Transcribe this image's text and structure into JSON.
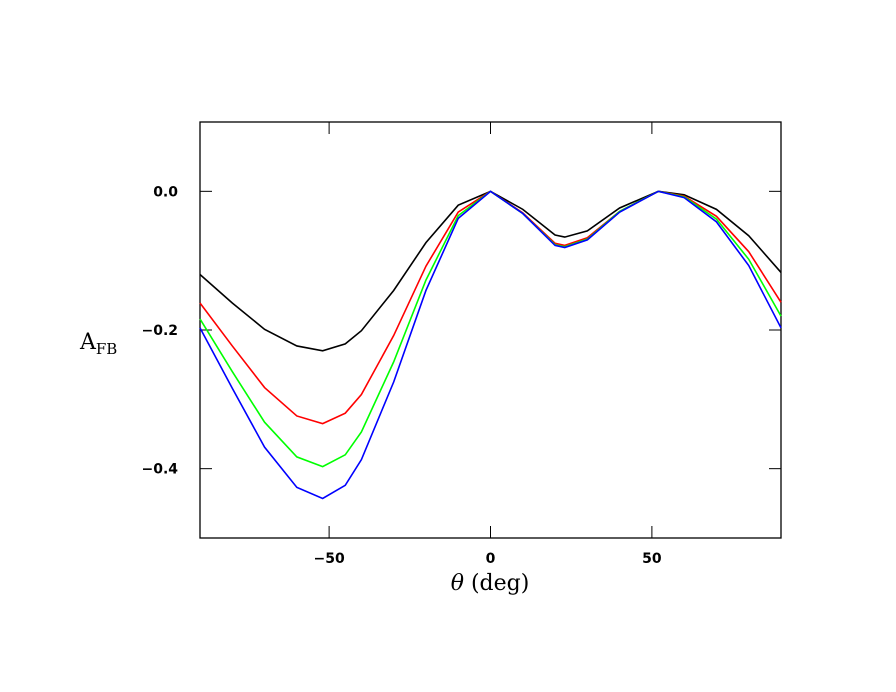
{
  "chart_data": {
    "type": "line",
    "ylabel": {
      "text": "A",
      "subscript": "FB"
    },
    "xlabel": {
      "symbol": "θ",
      "text": "(deg)"
    },
    "x": [
      -90,
      -80,
      -70,
      -60,
      -52,
      -45,
      -40,
      -30,
      -20,
      -10,
      0,
      10,
      20,
      23,
      30,
      40,
      52,
      60,
      70,
      80,
      90
    ],
    "series": [
      {
        "color": "#000000",
        "values": [
          -0.12,
          -0.161,
          -0.199,
          -0.223,
          -0.23,
          -0.22,
          -0.201,
          -0.143,
          -0.074,
          -0.02,
          0,
          -0.026,
          -0.063,
          -0.066,
          -0.057,
          -0.024,
          0,
          -0.005,
          -0.026,
          -0.064,
          -0.117
        ]
      },
      {
        "color": "#ff0000",
        "values": [
          -0.161,
          -0.223,
          -0.283,
          -0.324,
          -0.335,
          -0.32,
          -0.293,
          -0.208,
          -0.108,
          -0.03,
          0,
          -0.031,
          -0.075,
          -0.078,
          -0.067,
          -0.029,
          0,
          -0.007,
          -0.036,
          -0.087,
          -0.16
        ]
      },
      {
        "color": "#00ff00",
        "values": [
          -0.184,
          -0.26,
          -0.333,
          -0.383,
          -0.397,
          -0.38,
          -0.347,
          -0.246,
          -0.128,
          -0.035,
          0,
          -0.032,
          -0.077,
          -0.08,
          -0.069,
          -0.029,
          0,
          -0.008,
          -0.04,
          -0.098,
          -0.18
        ]
      },
      {
        "color": "#0000ff",
        "values": [
          -0.197,
          -0.284,
          -0.369,
          -0.427,
          -0.443,
          -0.424,
          -0.387,
          -0.275,
          -0.143,
          -0.039,
          0,
          -0.032,
          -0.078,
          -0.081,
          -0.07,
          -0.03,
          0,
          -0.009,
          -0.044,
          -0.107,
          -0.197
        ]
      }
    ],
    "xlim": [
      -90,
      90
    ],
    "xticks": [
      {
        "value": -50,
        "label": "−50"
      },
      0,
      50
    ],
    "ylim": [
      -0.5,
      0.1
    ],
    "yticks": [
      {
        "value": -0.4,
        "label": "−0.4"
      },
      {
        "value": -0.2,
        "label": "−0.2"
      },
      {
        "value": 0,
        "label": "0.0"
      }
    ]
  }
}
